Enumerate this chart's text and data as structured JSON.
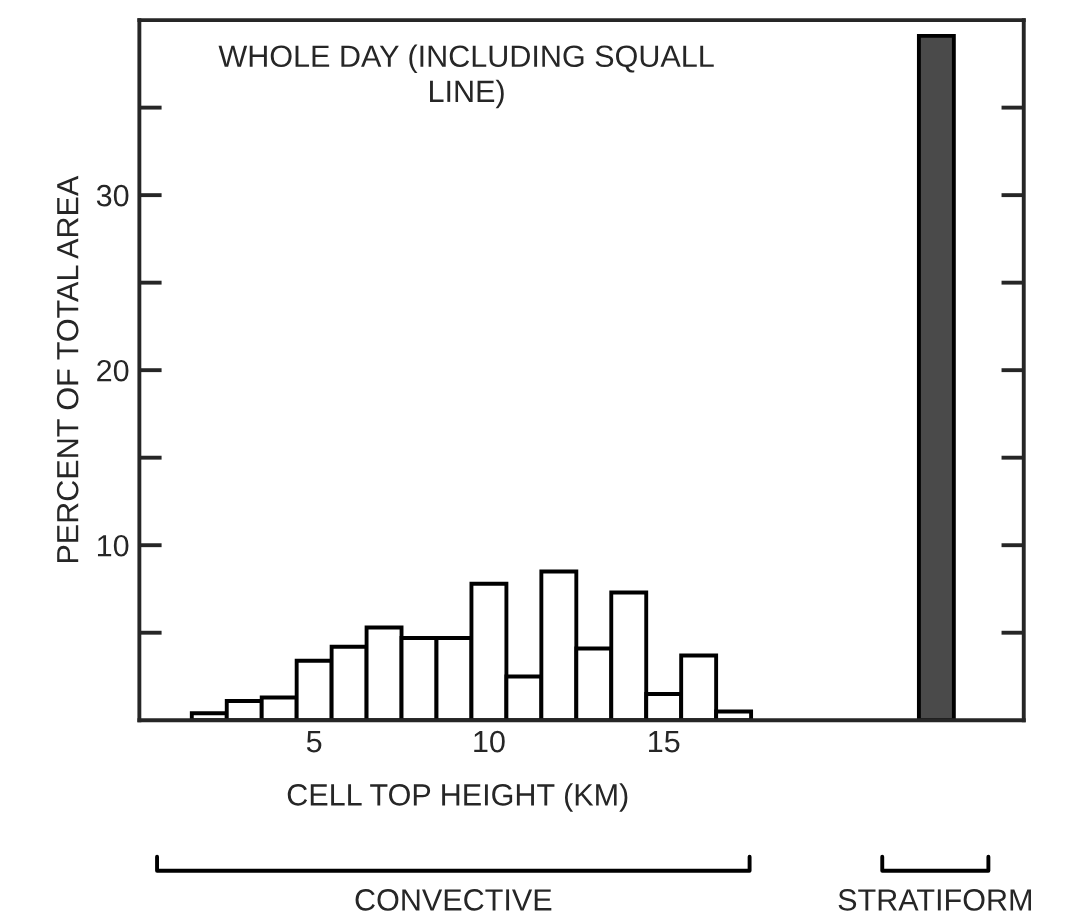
{
  "chart_data": {
    "type": "bar",
    "title": "WHOLE DAY (INCLUDING SQUALL\nLINE)",
    "xlabel": "CELL TOP HEIGHT (KM)",
    "ylabel": "PERCENT OF TOTAL AREA",
    "x": [
      2,
      3,
      4,
      5,
      6,
      7,
      8,
      9,
      10,
      11,
      12,
      13,
      14,
      15,
      16,
      17,
      22.8
    ],
    "values": [
      0.4,
      1.1,
      1.3,
      3.4,
      4.2,
      5.3,
      4.7,
      4.7,
      7.8,
      2.5,
      8.5,
      4.1,
      7.3,
      1.5,
      3.7,
      0.5,
      39.1
    ],
    "colors": [
      "#ffffff",
      "#ffffff",
      "#ffffff",
      "#ffffff",
      "#ffffff",
      "#ffffff",
      "#ffffff",
      "#ffffff",
      "#ffffff",
      "#ffffff",
      "#ffffff",
      "#ffffff",
      "#ffffff",
      "#ffffff",
      "#ffffff",
      "#ffffff",
      "#4a4a4a"
    ],
    "xlim": [
      0,
      25.3
    ],
    "ylim": [
      0,
      40
    ],
    "xticks": [
      5,
      10,
      15
    ],
    "yticks": [
      {
        "value": 5,
        "label": null
      },
      10,
      {
        "value": 15,
        "label": null
      },
      20,
      {
        "value": 25,
        "label": null
      },
      30,
      {
        "value": 35,
        "label": null
      }
    ],
    "annotations": [
      "CONVECTIVE",
      "STRATIFORM"
    ],
    "grid": false,
    "legend": false
  }
}
